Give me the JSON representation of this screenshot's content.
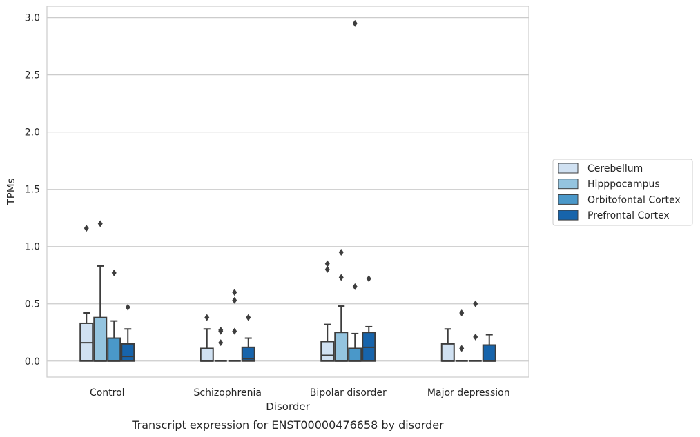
{
  "caption": "Transcript expression for ENST00000476658 by disorder",
  "chart_data": {
    "type": "box",
    "title": "",
    "xlabel": "Disorder",
    "ylabel": "TPMs",
    "ylim": [
      -0.14,
      3.1
    ],
    "yticks": [
      0.0,
      0.5,
      1.0,
      1.5,
      2.0,
      2.5,
      3.0
    ],
    "ytick_labels": [
      "0.0",
      "0.5",
      "1.0",
      "1.5",
      "2.0",
      "2.5",
      "3.0"
    ],
    "grid": "horizontal",
    "legend_position": "right",
    "categories": [
      "Control",
      "Schizophrenia",
      "Bipolar disorder",
      "Major depression"
    ],
    "series": [
      {
        "name": "Cerebellum",
        "color": "#d0e1f2",
        "boxes": [
          {
            "q1": 0.0,
            "median": 0.16,
            "q3": 0.33,
            "whisker_low": 0.0,
            "whisker_high": 0.42,
            "outliers": [
              1.16
            ]
          },
          {
            "q1": 0.0,
            "median": 0.0,
            "q3": 0.11,
            "whisker_low": 0.0,
            "whisker_high": 0.28,
            "outliers": [
              0.38
            ]
          },
          {
            "q1": 0.0,
            "median": 0.05,
            "q3": 0.17,
            "whisker_low": 0.0,
            "whisker_high": 0.32,
            "outliers": [
              0.85,
              0.8
            ]
          },
          {
            "q1": 0.0,
            "median": 0.0,
            "q3": 0.15,
            "whisker_low": 0.0,
            "whisker_high": 0.28,
            "outliers": []
          }
        ]
      },
      {
        "name": "Hipppocampus",
        "color": "#94c4df",
        "boxes": [
          {
            "q1": 0.0,
            "median": 0.0,
            "q3": 0.38,
            "whisker_low": 0.0,
            "whisker_high": 0.83,
            "outliers": [
              1.2
            ]
          },
          {
            "q1": 0.0,
            "median": 0.0,
            "q3": 0.0,
            "whisker_low": 0.0,
            "whisker_high": 0.0,
            "outliers": [
              0.16,
              0.27,
              0.26
            ]
          },
          {
            "q1": 0.0,
            "median": 0.0,
            "q3": 0.25,
            "whisker_low": 0.0,
            "whisker_high": 0.48,
            "outliers": [
              0.95,
              0.73
            ]
          },
          {
            "q1": 0.0,
            "median": 0.0,
            "q3": 0.0,
            "whisker_low": 0.0,
            "whisker_high": 0.0,
            "outliers": [
              0.11,
              0.42
            ]
          }
        ]
      },
      {
        "name": "Orbitofontal Cortex",
        "color": "#4a98c9",
        "boxes": [
          {
            "q1": 0.0,
            "median": 0.0,
            "q3": 0.2,
            "whisker_low": 0.0,
            "whisker_high": 0.35,
            "outliers": [
              0.77
            ]
          },
          {
            "q1": 0.0,
            "median": 0.0,
            "q3": 0.0,
            "whisker_low": 0.0,
            "whisker_high": 0.0,
            "outliers": [
              0.26,
              0.53,
              0.6
            ]
          },
          {
            "q1": 0.0,
            "median": 0.0,
            "q3": 0.11,
            "whisker_low": 0.0,
            "whisker_high": 0.24,
            "outliers": [
              0.65,
              2.95
            ]
          },
          {
            "q1": 0.0,
            "median": 0.0,
            "q3": 0.0,
            "whisker_low": 0.0,
            "whisker_high": 0.0,
            "outliers": [
              0.21,
              0.5
            ]
          }
        ]
      },
      {
        "name": "Prefrontal Cortex",
        "color": "#1764ab",
        "boxes": [
          {
            "q1": 0.0,
            "median": 0.04,
            "q3": 0.15,
            "whisker_low": 0.0,
            "whisker_high": 0.28,
            "outliers": [
              0.47
            ]
          },
          {
            "q1": 0.0,
            "median": 0.02,
            "q3": 0.12,
            "whisker_low": 0.0,
            "whisker_high": 0.2,
            "outliers": [
              0.38
            ]
          },
          {
            "q1": 0.0,
            "median": 0.12,
            "q3": 0.25,
            "whisker_low": 0.0,
            "whisker_high": 0.3,
            "outliers": [
              0.72
            ]
          },
          {
            "q1": 0.0,
            "median": 0.0,
            "q3": 0.14,
            "whisker_low": 0.0,
            "whisker_high": 0.23,
            "outliers": []
          }
        ]
      }
    ]
  }
}
